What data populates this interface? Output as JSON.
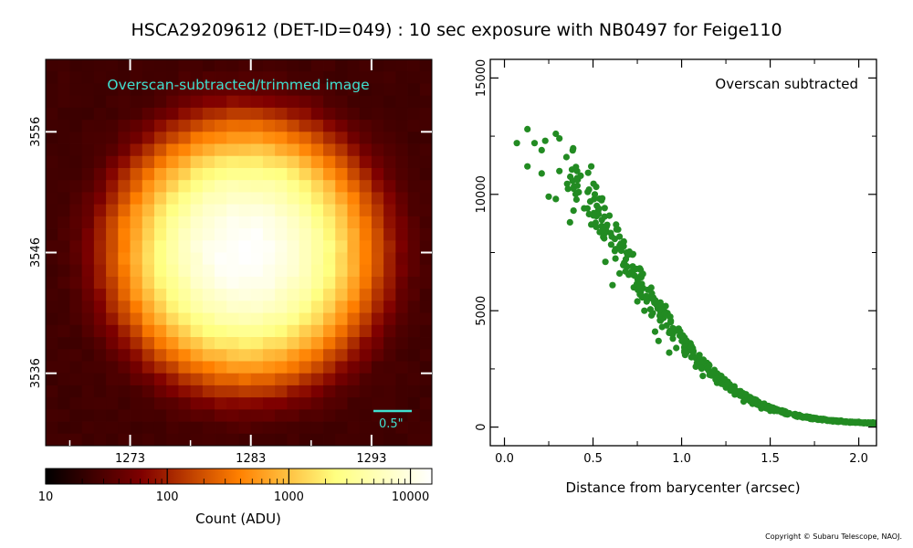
{
  "title": "HSCA29209612 (DET-ID=049) :  10 sec exposure with NB0497 for Feige110",
  "copyright": "Copyright © Subaru Telescope, NAOJ.",
  "colors": {
    "scatter": "#228B22",
    "annotation": "#40E0D0"
  },
  "chart_data": [
    {
      "type": "heatmap",
      "title": "Overscan-subtracted/trimmed image",
      "colormap": "afmhot",
      "xlim": [
        1266,
        1298
      ],
      "ylim": [
        3530,
        3562
      ],
      "x_ticks": [
        1273,
        1283,
        1293
      ],
      "y_ticks": [
        3536,
        3546,
        3556
      ],
      "center": [
        1282.5,
        3546
      ],
      "peak": 15000,
      "background": 25,
      "scale_bar_label": "0.5\"",
      "colorbar": {
        "scale": "log",
        "range": [
          10,
          15000
        ],
        "tick_labels": [
          "10",
          "100",
          "1000",
          "10000"
        ],
        "tick_values": [
          10,
          100,
          1000,
          10000
        ],
        "label": "Count (ADU)"
      }
    },
    {
      "type": "scatter",
      "annotation": "Overscan subtracted",
      "xlabel": "Distance from barycenter (arcsec)",
      "ylabel": "",
      "xlim": [
        -0.08,
        2.1
      ],
      "ylim": [
        -800,
        15800
      ],
      "x_ticks": [
        0.0,
        0.5,
        1.0,
        1.5,
        2.0
      ],
      "x_tick_labels": [
        "0.0",
        "0.5",
        "1.0",
        "1.5",
        "2.0"
      ],
      "y_ticks": [
        0,
        5000,
        10000,
        15000
      ],
      "y_tick_labels": [
        "0",
        "5000",
        "10000",
        "15000"
      ],
      "profile": {
        "amplitude": 13200,
        "sigma_arcsec": 0.62,
        "floor": 120
      },
      "sample_points": [
        [
          0.07,
          12200
        ],
        [
          0.13,
          12800
        ],
        [
          0.13,
          11200
        ],
        [
          0.17,
          12200
        ],
        [
          0.21,
          11900
        ],
        [
          0.21,
          10900
        ],
        [
          0.23,
          12300
        ],
        [
          0.25,
          9900
        ],
        [
          0.29,
          12600
        ],
        [
          0.29,
          9800
        ],
        [
          0.31,
          11000
        ],
        [
          0.31,
          12400
        ],
        [
          0.35,
          11600
        ],
        [
          0.37,
          8800
        ],
        [
          0.39,
          9300
        ],
        [
          0.41,
          10700
        ],
        [
          0.41,
          11000
        ],
        [
          0.43,
          10800
        ],
        [
          0.45,
          9400
        ],
        [
          0.47,
          10100
        ],
        [
          0.49,
          11200
        ],
        [
          0.49,
          8700
        ],
        [
          0.51,
          10000
        ],
        [
          0.55,
          8900
        ],
        [
          0.57,
          8500
        ],
        [
          0.57,
          7100
        ],
        [
          0.61,
          6100
        ],
        [
          0.63,
          8700
        ],
        [
          0.65,
          6600
        ],
        [
          0.67,
          7800
        ],
        [
          0.69,
          7500
        ],
        [
          0.71,
          6600
        ],
        [
          0.73,
          6000
        ],
        [
          0.75,
          5400
        ],
        [
          0.77,
          6500
        ],
        [
          0.79,
          5000
        ],
        [
          0.81,
          5900
        ],
        [
          0.83,
          4800
        ],
        [
          0.85,
          4100
        ],
        [
          0.87,
          3700
        ],
        [
          0.89,
          4300
        ],
        [
          0.91,
          5200
        ],
        [
          0.93,
          3200
        ],
        [
          0.95,
          4000
        ],
        [
          0.97,
          3400
        ],
        [
          1.0,
          3900
        ],
        [
          1.02,
          3100
        ],
        [
          1.05,
          3600
        ],
        [
          1.08,
          2600
        ],
        [
          1.12,
          2200
        ],
        [
          1.15,
          2700
        ],
        [
          1.2,
          1900
        ],
        [
          1.25,
          1700
        ],
        [
          1.3,
          1400
        ],
        [
          1.35,
          1100
        ],
        [
          1.4,
          1000
        ],
        [
          1.45,
          800
        ],
        [
          1.5,
          700
        ],
        [
          1.6,
          550
        ],
        [
          1.7,
          420
        ],
        [
          1.8,
          350
        ],
        [
          1.9,
          280
        ],
        [
          2.0,
          230
        ],
        [
          2.08,
          200
        ]
      ]
    }
  ]
}
